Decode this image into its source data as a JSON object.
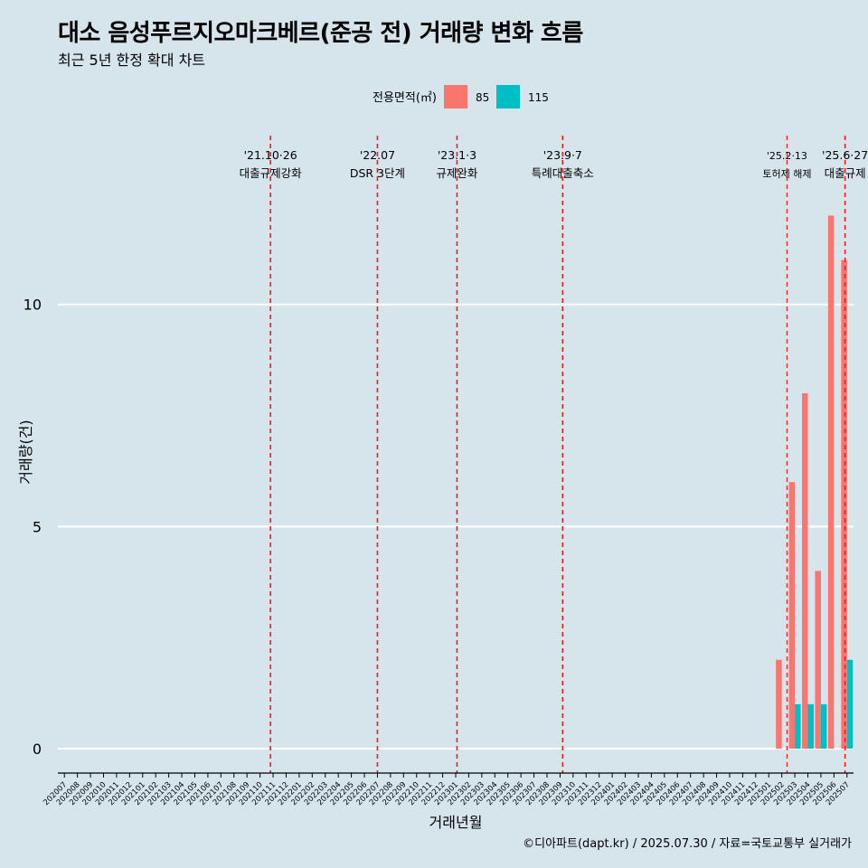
{
  "title": "대소 음성푸르지오마크베르(준공 전) 거래량 변화 흐름",
  "subtitle": "최근 5년 한정 확대 차트",
  "caption": "©디아파트(dapt.kr) / 2025.07.30 / 자료=국토교통부 실거래가",
  "colors": {
    "s85": "#f8766d",
    "s115": "#00bfc4",
    "event": "#ee1c1c",
    "grid": "#ffffff",
    "bg": "#d6e4eb"
  },
  "chart_data": {
    "type": "bar",
    "xlabel": "거래년월",
    "ylabel": "거래량(건)",
    "ylim": [
      -0.55,
      13.8
    ],
    "yticks": [
      0,
      5,
      10
    ],
    "legend": {
      "title": "전용면적(㎡)",
      "placement": "top"
    },
    "categories": [
      "202007",
      "202008",
      "202009",
      "202010",
      "202011",
      "202012",
      "202101",
      "202102",
      "202103",
      "202104",
      "202105",
      "202106",
      "202107",
      "202108",
      "202109",
      "202110",
      "202111",
      "202112",
      "202201",
      "202202",
      "202203",
      "202204",
      "202205",
      "202206",
      "202207",
      "202208",
      "202209",
      "202210",
      "202211",
      "202212",
      "202301",
      "202302",
      "202303",
      "202304",
      "202305",
      "202306",
      "202307",
      "202308",
      "202309",
      "202310",
      "202311",
      "202312",
      "202401",
      "202402",
      "202403",
      "202404",
      "202405",
      "202406",
      "202407",
      "202408",
      "202409",
      "202410",
      "202411",
      "202412",
      "202501",
      "202502",
      "202503",
      "202504",
      "202505",
      "202506",
      "202507"
    ],
    "series": [
      {
        "name": "85",
        "values": [
          0,
          0,
          0,
          0,
          0,
          0,
          0,
          0,
          0,
          0,
          0,
          0,
          0,
          0,
          0,
          0,
          0,
          0,
          0,
          0,
          0,
          0,
          0,
          0,
          0,
          0,
          0,
          0,
          0,
          0,
          0,
          0,
          0,
          0,
          0,
          0,
          0,
          0,
          0,
          0,
          0,
          0,
          0,
          0,
          0,
          0,
          0,
          0,
          0,
          0,
          0,
          0,
          0,
          0,
          0,
          2,
          6,
          8,
          4,
          12,
          11
        ]
      },
      {
        "name": "115",
        "values": [
          0,
          0,
          0,
          0,
          0,
          0,
          0,
          0,
          0,
          0,
          0,
          0,
          0,
          0,
          0,
          0,
          0,
          0,
          0,
          0,
          0,
          0,
          0,
          0,
          0,
          0,
          0,
          0,
          0,
          0,
          0,
          0,
          0,
          0,
          0,
          0,
          0,
          0,
          0,
          0,
          0,
          0,
          0,
          0,
          0,
          0,
          0,
          0,
          0,
          0,
          0,
          0,
          0,
          0,
          0,
          0,
          1,
          1,
          1,
          0,
          2
        ]
      }
    ],
    "events": [
      {
        "date": "'21.10·26",
        "label": "대출규제강화",
        "category": "202110",
        "offset": 0.8
      },
      {
        "date": "'22.07",
        "label": "DSR 3단계",
        "category": "202207",
        "offset": 0
      },
      {
        "date": "'23.1·3",
        "label": "규제완화",
        "category": "202301",
        "offset": 0.1
      },
      {
        "date": "'23.9·7",
        "label": "특례대출축소",
        "category": "202309",
        "offset": 0.2
      },
      {
        "date": "'25.2·13",
        "label": "토허제 해제",
        "category": "202502",
        "offset": 0.4,
        "small": true
      },
      {
        "date": "'25.6·27",
        "label": "대출규제",
        "category": "202506",
        "offset": 0.85
      }
    ]
  }
}
